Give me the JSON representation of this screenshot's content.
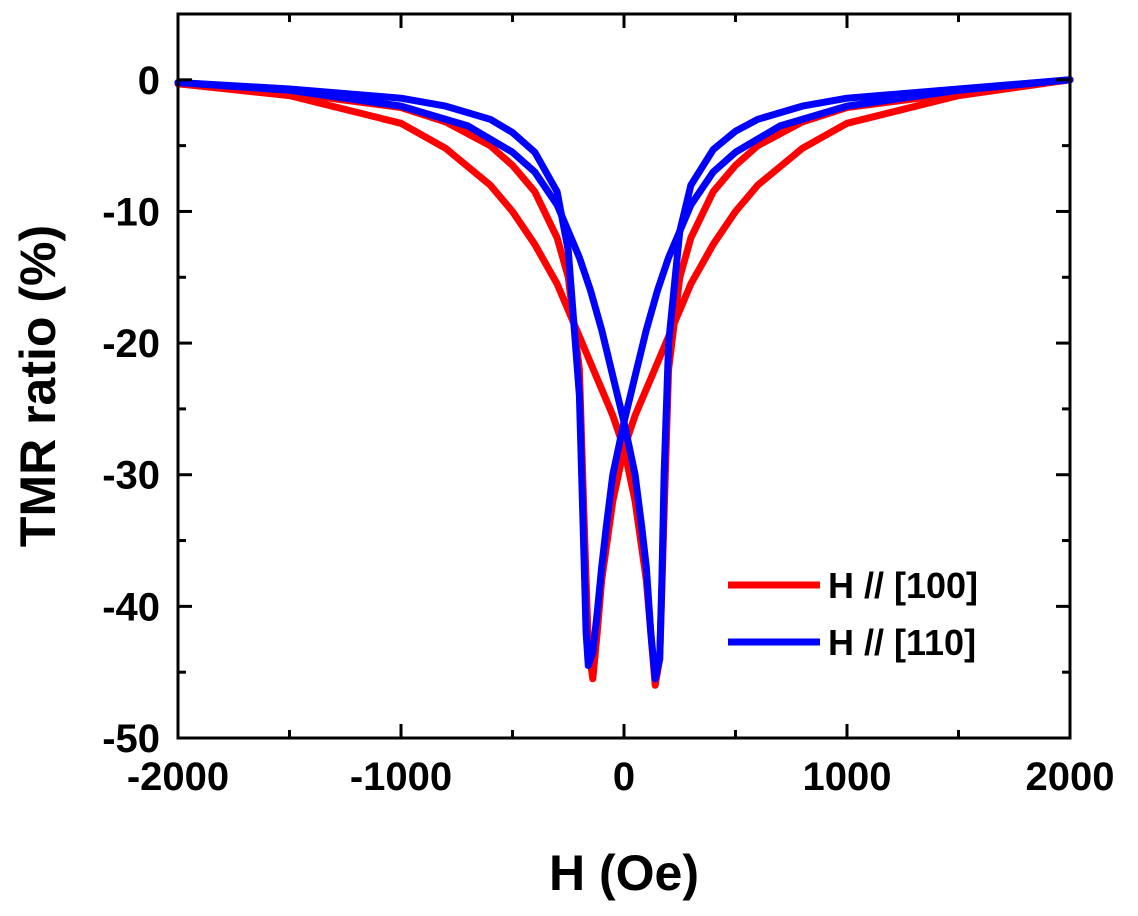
{
  "chart_data": {
    "type": "line",
    "title": "",
    "xlabel": "H (Oe)",
    "ylabel": "TMR ratio (%)",
    "xlim": [
      -2000,
      2000
    ],
    "ylim": [
      -50,
      5
    ],
    "xticks": [
      -2000,
      -1000,
      0,
      1000,
      2000
    ],
    "yticks": [
      0,
      -10,
      -20,
      -30,
      -40,
      -50
    ],
    "grid": false,
    "legend_position": "lower-right",
    "series": [
      {
        "name": "H // [100]",
        "color": "#ff0000",
        "sweep_down": {
          "x": [
            2000,
            1500,
            1000,
            800,
            600,
            500,
            400,
            300,
            250,
            200,
            150,
            100,
            50,
            0,
            -50,
            -100,
            -120,
            -140,
            -160,
            -180,
            -200,
            -250,
            -300,
            -400,
            -500,
            -600,
            -800,
            -1000,
            -1500,
            -2000
          ],
          "y": [
            0,
            -1.2,
            -3.3,
            -5.2,
            -8.0,
            -10.0,
            -12.5,
            -15.5,
            -17.5,
            -19.5,
            -21.5,
            -23.5,
            -25.5,
            -28.0,
            -32.0,
            -38.0,
            -42.0,
            -45.5,
            -43.0,
            -33.0,
            -22.0,
            -15.0,
            -12.0,
            -8.5,
            -6.5,
            -5.0,
            -3.2,
            -2.1,
            -1.0,
            -0.3
          ]
        },
        "sweep_up": {
          "x": [
            -2000,
            -1500,
            -1000,
            -800,
            -600,
            -500,
            -400,
            -300,
            -250,
            -200,
            -150,
            -100,
            -50,
            0,
            50,
            100,
            120,
            140,
            160,
            180,
            200,
            250,
            300,
            400,
            500,
            600,
            800,
            1000,
            1500,
            2000
          ],
          "y": [
            -0.3,
            -1.2,
            -3.3,
            -5.2,
            -8.0,
            -10.0,
            -12.5,
            -15.5,
            -17.5,
            -19.5,
            -21.5,
            -23.5,
            -25.5,
            -28.0,
            -32.0,
            -38.0,
            -42.0,
            -46.0,
            -44.0,
            -33.0,
            -22.0,
            -15.0,
            -12.0,
            -8.5,
            -6.5,
            -5.0,
            -3.2,
            -2.1,
            -1.0,
            0
          ]
        }
      },
      {
        "name": "H // [110]",
        "color": "#0000ff",
        "sweep_down": {
          "x": [
            2000,
            1500,
            1000,
            700,
            500,
            400,
            300,
            250,
            200,
            150,
            100,
            50,
            0,
            -50,
            -80,
            -100,
            -120,
            -140,
            -160,
            -170,
            -180,
            -200,
            -250,
            -300,
            -400,
            -500,
            -600,
            -800,
            -1000,
            -1500,
            -2000
          ],
          "y": [
            0,
            -0.8,
            -2.0,
            -3.5,
            -5.5,
            -7.0,
            -9.5,
            -11.5,
            -13.5,
            -16.0,
            -19.0,
            -22.5,
            -26.0,
            -30.0,
            -34.0,
            -37.0,
            -40.5,
            -43.5,
            -44.5,
            -42.0,
            -36.0,
            -24.0,
            -13.0,
            -8.5,
            -5.5,
            -4.0,
            -3.0,
            -2.0,
            -1.4,
            -0.7,
            -0.2
          ]
        },
        "sweep_up": {
          "x": [
            -2000,
            -1500,
            -1000,
            -700,
            -500,
            -400,
            -300,
            -250,
            -200,
            -150,
            -100,
            -50,
            0,
            50,
            80,
            100,
            120,
            140,
            160,
            170,
            180,
            200,
            250,
            300,
            400,
            500,
            600,
            800,
            1000,
            1500,
            2000
          ],
          "y": [
            -0.2,
            -0.8,
            -2.0,
            -3.5,
            -5.5,
            -7.0,
            -9.5,
            -11.5,
            -13.5,
            -16.0,
            -19.0,
            -22.5,
            -26.0,
            -30.0,
            -34.0,
            -37.0,
            -42.0,
            -45.5,
            -44.0,
            -38.0,
            -30.0,
            -20.0,
            -11.5,
            -8.0,
            -5.3,
            -3.9,
            -3.0,
            -2.0,
            -1.4,
            -0.7,
            0
          ]
        }
      }
    ]
  }
}
